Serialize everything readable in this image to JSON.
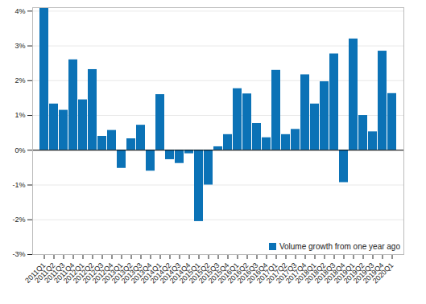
{
  "chart_data": {
    "type": "bar",
    "categories": [
      "2011Q1",
      "2011Q2",
      "2011Q3",
      "2011Q4",
      "2012Q1",
      "2012Q2",
      "2012Q3",
      "2012Q4",
      "2013Q1",
      "2013Q2",
      "2013Q3",
      "2013Q4",
      "2014Q1",
      "2014Q2",
      "2014Q3",
      "2014Q4",
      "2015Q1",
      "2015Q2",
      "2015Q3",
      "2015Q4",
      "2016Q1",
      "2016Q2",
      "2016Q3",
      "2016Q4",
      "2017Q1",
      "2017Q2",
      "2017Q3",
      "2017Q4",
      "2018Q1",
      "2018Q2",
      "2018Q3",
      "2018Q4",
      "2019Q1",
      "2019Q2",
      "2019Q3",
      "2019Q4",
      "2020Q1"
    ],
    "series": [
      {
        "name": "Volume growth from one year ago",
        "color": "#0b72b6",
        "values": [
          4.1,
          1.33,
          1.15,
          2.6,
          1.45,
          2.32,
          0.4,
          0.57,
          -0.52,
          0.33,
          0.72,
          -0.6,
          1.6,
          -0.27,
          -0.38,
          -0.1,
          -2.05,
          -1.0,
          0.1,
          0.45,
          1.77,
          1.62,
          0.77,
          0.36,
          2.3,
          0.45,
          0.6,
          2.17,
          1.33,
          1.97,
          2.77,
          -0.93,
          3.2,
          1.0,
          0.53,
          2.85,
          1.63
        ]
      }
    ],
    "ylim": [
      -3,
      4.1
    ],
    "yticks": [
      {
        "value": -3,
        "label": "-3%"
      },
      {
        "value": -2,
        "label": "-2%"
      },
      {
        "value": -1,
        "label": "-1%"
      },
      {
        "value": 0,
        "label": "0%"
      },
      {
        "value": 1,
        "label": "1%"
      },
      {
        "value": 2,
        "label": "2%"
      },
      {
        "value": 3,
        "label": "3%"
      },
      {
        "value": 4,
        "label": "4%"
      }
    ],
    "grid": true,
    "legend": "bottom-right"
  }
}
